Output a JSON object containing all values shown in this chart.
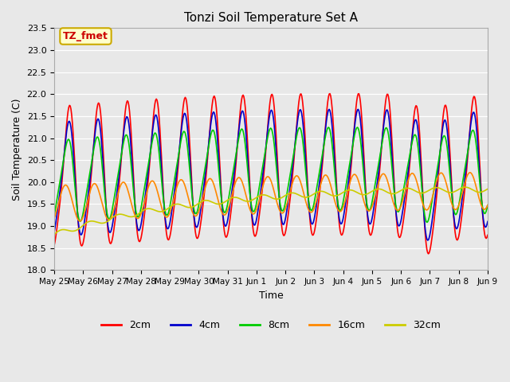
{
  "title": "Tonzi Soil Temperature Set A",
  "xlabel": "Time",
  "ylabel": "Soil Temperature (C)",
  "ylim": [
    18.0,
    23.5
  ],
  "yticks": [
    18.0,
    18.5,
    19.0,
    19.5,
    20.0,
    20.5,
    21.0,
    21.5,
    22.0,
    22.5,
    23.0,
    23.5
  ],
  "xtick_labels": [
    "May 25",
    "May 26",
    "May 27",
    "May 28",
    "May 29",
    "May 30",
    "May 31",
    "Jun 1",
    "Jun 2",
    "Jun 3",
    "Jun 4",
    "Jun 5",
    "Jun 6",
    "Jun 7",
    "Jun 8",
    "Jun 9"
  ],
  "xtick_positions": [
    0,
    1,
    2,
    3,
    4,
    5,
    6,
    7,
    8,
    9,
    10,
    11,
    12,
    13,
    14,
    15
  ],
  "legend_labels": [
    "2cm",
    "4cm",
    "8cm",
    "16cm",
    "32cm"
  ],
  "series_colors": [
    "#ff0000",
    "#0000cc",
    "#00cc00",
    "#ff8800",
    "#cccc00"
  ],
  "annotation_text": "TZ_fmet",
  "annotation_bg": "#ffffcc",
  "annotation_edge": "#ccaa00",
  "annotation_text_color": "#cc0000",
  "bg_color": "#e8e8e8",
  "n_points": 600,
  "time_start": 0,
  "time_end": 15
}
